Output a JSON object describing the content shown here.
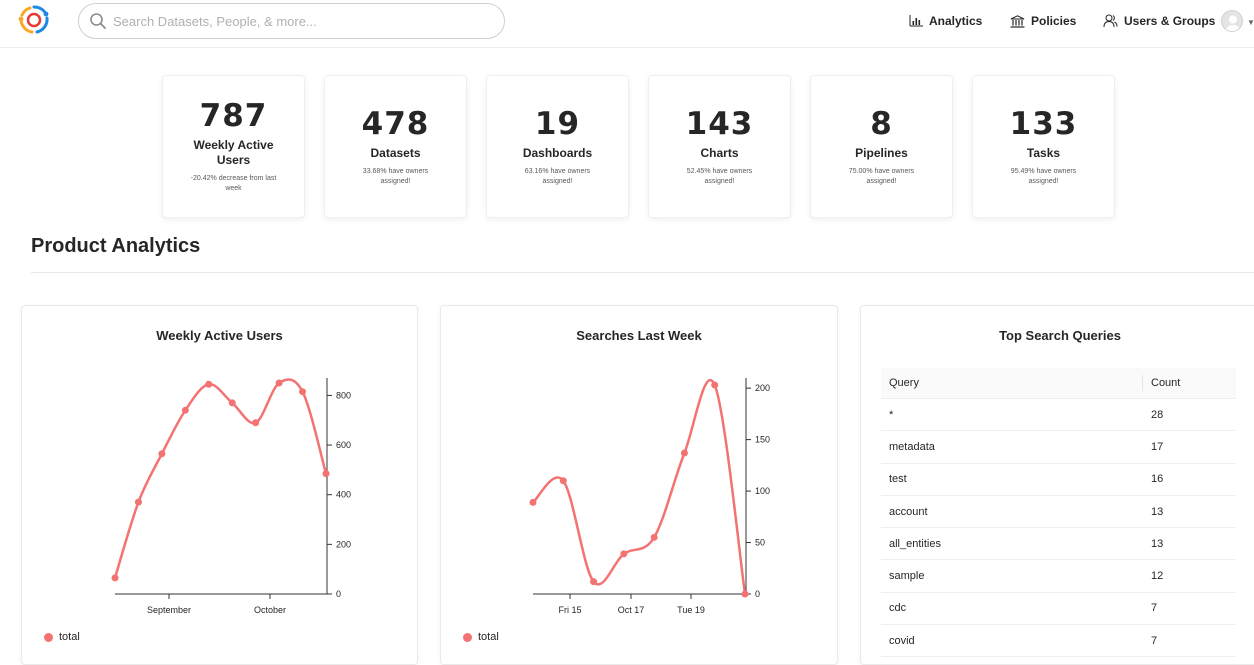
{
  "header": {
    "search_placeholder": "Search Datasets, People, & more...",
    "nav": [
      {
        "label": "Analytics",
        "icon": "bar-chart-icon"
      },
      {
        "label": "Policies",
        "icon": "bank-icon"
      },
      {
        "label": "Users & Groups",
        "icon": "users-icon"
      }
    ],
    "colors": {
      "brand_orange": "#f9a825",
      "brand_blue": "#1e88e5",
      "brand_red": "#e53935"
    }
  },
  "stats": [
    {
      "value": "787",
      "label": "Weekly Active Users",
      "sub": "-20.42% decrease from last week"
    },
    {
      "value": "478",
      "label": "Datasets",
      "sub": "33.68% have owners assigned!"
    },
    {
      "value": "19",
      "label": "Dashboards",
      "sub": "63.16% have owners assigned!"
    },
    {
      "value": "143",
      "label": "Charts",
      "sub": "52.45% have owners assigned!"
    },
    {
      "value": "8",
      "label": "Pipelines",
      "sub": "75.00% have owners assigned!"
    },
    {
      "value": "133",
      "label": "Tasks",
      "sub": "95.49% have owners assigned!"
    }
  ],
  "section_title": "Product Analytics",
  "chart_data": [
    {
      "type": "line",
      "title": "Weekly Active Users",
      "x_ticks": [
        "September",
        "October"
      ],
      "ylim": [
        0,
        850
      ],
      "y_ticks": [
        0,
        200,
        400,
        600,
        800
      ],
      "series": [
        {
          "name": "total",
          "color": "#f37272",
          "values": [
            65,
            370,
            565,
            740,
            845,
            770,
            690,
            850,
            815,
            485
          ]
        }
      ],
      "legend": "bottom-left"
    },
    {
      "type": "line",
      "title": "Searches Last Week",
      "x_ticks": [
        "Fri 15",
        "Oct 17",
        "Tue 19"
      ],
      "ylim": [
        0,
        205
      ],
      "y_ticks": [
        0,
        50,
        100,
        150,
        200
      ],
      "series": [
        {
          "name": "total",
          "color": "#f37272",
          "values": [
            89,
            110,
            12,
            39,
            55,
            137,
            203,
            0
          ]
        }
      ],
      "legend": "bottom-left"
    }
  ],
  "top_queries": {
    "title": "Top Search Queries",
    "columns": [
      "Query",
      "Count"
    ],
    "rows": [
      [
        "*",
        "28"
      ],
      [
        "metadata",
        "17"
      ],
      [
        "test",
        "16"
      ],
      [
        "account",
        "13"
      ],
      [
        "all_entities",
        "13"
      ],
      [
        "sample",
        "12"
      ],
      [
        "cdc",
        "7"
      ],
      [
        "covid",
        "7"
      ]
    ]
  }
}
